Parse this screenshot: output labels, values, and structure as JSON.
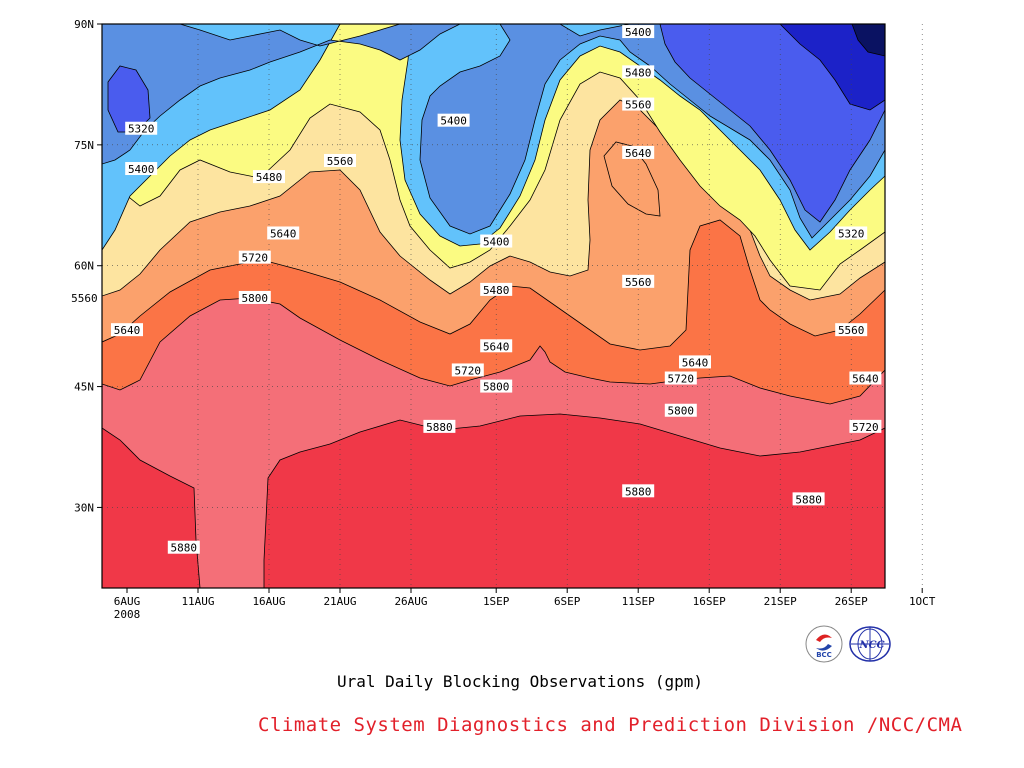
{
  "title": "Ural Daily Blocking Observations (gpm)",
  "credit": "Climate System Diagnostics and Prediction Division /NCC/CMA",
  "logos": {
    "bcc_text": "BCC",
    "ncc_text": "NCC"
  },
  "chart_data": {
    "type": "heatmap",
    "title": "Ural Daily Blocking Observations (gpm)",
    "xlabel": "",
    "ylabel": "",
    "x_ticks": [
      "6AUG",
      "11AUG",
      "16AUG",
      "21AUG",
      "26AUG",
      "1SEP",
      "6SEP",
      "11SEP",
      "16SEP",
      "21SEP",
      "26SEP",
      "1OCT"
    ],
    "x_tick_year": "2008",
    "y_ticks": [
      "30N",
      "45N",
      "60N",
      "75N",
      "90N"
    ],
    "y_tick_values": [
      30,
      45,
      60,
      75,
      90
    ],
    "ylim": [
      20,
      90
    ],
    "grid": true,
    "contour_levels": [
      5320,
      5400,
      5480,
      5560,
      5640,
      5720,
      5800,
      5880
    ],
    "level_colors": {
      "below_5240": "#0a1262",
      "5240": "#1c22c8",
      "5320": "#4a5cee",
      "5400": "#5a90e2",
      "5480": "#62c2fb",
      "5560": "#fbfb82",
      "5640": "#fde4a0",
      "5720": "#fba16c",
      "5800": "#fb7446",
      "5880": "#f46f78",
      "above_5880": "#f03848"
    },
    "contour_labels": [
      {
        "text": "5400",
        "date": "11SEP",
        "lat": 89
      },
      {
        "text": "5480",
        "date": "11SEP",
        "lat": 84
      },
      {
        "text": "5560",
        "date": "11SEP",
        "lat": 80
      },
      {
        "text": "5400",
        "date": "29AUG",
        "lat": 78
      },
      {
        "text": "5320",
        "date": "7AUG",
        "lat": 77
      },
      {
        "text": "5400",
        "date": "7AUG",
        "lat": 72
      },
      {
        "text": "5560",
        "date": "21AUG",
        "lat": 73
      },
      {
        "text": "5640",
        "date": "11SEP",
        "lat": 74
      },
      {
        "text": "5480",
        "date": "16AUG",
        "lat": 71
      },
      {
        "text": "5320",
        "date": "26SEP",
        "lat": 64
      },
      {
        "text": "5640",
        "date": "17AUG",
        "lat": 64
      },
      {
        "text": "5400",
        "date": "1SEP",
        "lat": 63
      },
      {
        "text": "5720",
        "date": "15AUG",
        "lat": 61
      },
      {
        "text": "5480",
        "date": "1SEP",
        "lat": 57
      },
      {
        "text": "5560",
        "date": "11SEP",
        "lat": 58
      },
      {
        "text": "5560",
        "date": "3AUG",
        "lat": 56
      },
      {
        "text": "5800",
        "date": "15AUG",
        "lat": 56
      },
      {
        "text": "5640",
        "date": "6AUG",
        "lat": 52
      },
      {
        "text": "5560",
        "date": "26SEP",
        "lat": 52
      },
      {
        "text": "5640",
        "date": "1SEP",
        "lat": 50
      },
      {
        "text": "5640",
        "date": "15SEP",
        "lat": 48
      },
      {
        "text": "5720",
        "date": "30AUG",
        "lat": 47
      },
      {
        "text": "5640",
        "date": "27SEP",
        "lat": 46
      },
      {
        "text": "5720",
        "date": "14SEP",
        "lat": 46
      },
      {
        "text": "5800",
        "date": "1SEP",
        "lat": 45
      },
      {
        "text": "5800",
        "date": "14SEP",
        "lat": 42
      },
      {
        "text": "5720",
        "date": "27SEP",
        "lat": 40
      },
      {
        "text": "5880",
        "date": "28AUG",
        "lat": 40
      },
      {
        "text": "5880",
        "date": "11SEP",
        "lat": 32
      },
      {
        "text": "5880",
        "date": "23SEP",
        "lat": 31
      },
      {
        "text": "5880",
        "date": "10AUG",
        "lat": 25
      }
    ]
  }
}
